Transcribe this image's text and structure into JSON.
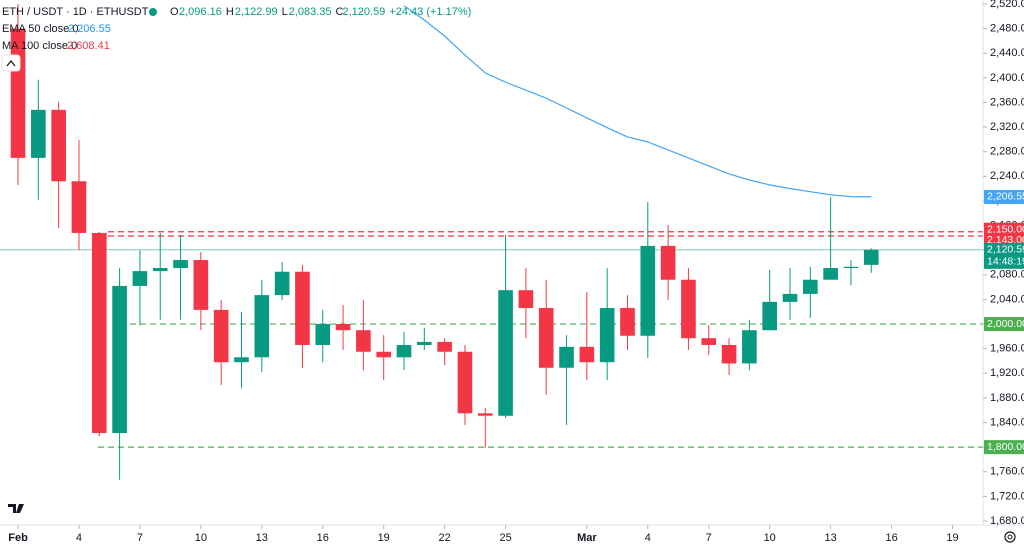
{
  "chart_data": {
    "type": "candlestick",
    "symbol": "ETH / USDT · 1D · ETHUSDT",
    "ohlc_legend": {
      "O": "2,096.16",
      "H": "2,122.99",
      "L": "2,083.35",
      "C": "2,120.59",
      "change": "+24.43 (+1.17%)"
    },
    "ema": {
      "name": "EMA 50 close 0",
      "value_label": "2,206.55",
      "color": "#42a5f5",
      "values": [
        null,
        null,
        null,
        null,
        null,
        null,
        null,
        null,
        null,
        null,
        null,
        null,
        null,
        null,
        null,
        null,
        null,
        null,
        null,
        2517,
        2494,
        2468,
        2437,
        2408,
        2393,
        2380,
        2367,
        2351,
        2335,
        2319,
        2304,
        2296,
        2283,
        2270,
        2257,
        2244,
        2234,
        2226,
        2220,
        2215,
        2210,
        2207,
        2206.55
      ]
    },
    "ma": {
      "name": "MA 100 close 0",
      "value_label": "2,608.41",
      "color": "#f23645"
    },
    "up_color": "#089981",
    "down_color": "#f23645",
    "x": [
      0,
      1,
      2,
      3,
      4,
      5,
      6,
      7,
      8,
      9,
      10,
      11,
      12,
      13,
      14,
      15,
      16,
      17,
      18,
      19,
      20,
      21,
      22,
      23,
      24,
      25,
      26,
      27,
      28,
      29,
      30,
      31,
      32,
      33,
      34,
      35,
      36,
      37,
      38,
      39,
      40,
      41,
      42
    ],
    "open": [
      2480,
      2270,
      2348,
      2232,
      2148,
      1823,
      2062,
      2086,
      2091,
      2104,
      2023,
      1938,
      1946,
      2047,
      2085,
      1966,
      2000,
      1990,
      1955,
      1946,
      1966,
      1971,
      1955,
      1855,
      1851,
      2055,
      2026,
      1929,
      1963,
      1938,
      2026,
      1981,
      2127,
      2072,
      1977,
      1966,
      1936,
      1990,
      2036,
      2049,
      2072,
      2091,
      2096.16
    ],
    "high": [
      2520,
      2397,
      2361,
      2299,
      2150,
      2091,
      2120,
      2148,
      2145,
      2117,
      2039,
      2020,
      2072,
      2101,
      2096,
      2023,
      2031,
      2039,
      1982,
      1987,
      1994,
      1977,
      1966,
      1864,
      2145,
      2091,
      2072,
      1982,
      2052,
      2091,
      2047,
      2198,
      2161,
      2091,
      1998,
      1977,
      2007,
      2088,
      2091,
      2093,
      2206,
      2104,
      2122.99
    ],
    "low": [
      2226,
      2202,
      2156,
      2120,
      1818,
      1747,
      1998,
      2007,
      2007,
      1990,
      1901,
      1896,
      1922,
      2039,
      1929,
      1938,
      1958,
      1925,
      1909,
      1925,
      1958,
      1933,
      1836,
      1799,
      1847,
      1977,
      1885,
      1836,
      1909,
      1909,
      1958,
      1945,
      2039,
      1958,
      1950,
      1917,
      1925,
      1990,
      2007,
      2010,
      2080,
      2063,
      2083.35
    ],
    "close": [
      2270,
      2348,
      2232,
      2148,
      1823,
      2062,
      2086,
      2091,
      2104,
      2023,
      1938,
      1946,
      2047,
      2085,
      1966,
      2000,
      1990,
      1955,
      1946,
      1966,
      1971,
      1955,
      1855,
      1851,
      2055,
      2026,
      1929,
      1963,
      1938,
      2026,
      1981,
      2127,
      2072,
      1977,
      1966,
      1936,
      1990,
      2036,
      2049,
      2072,
      2091,
      2093,
      2120.59
    ],
    "xlim": [
      -0.887,
      47.5
    ],
    "xticks": [
      {
        "value": 0,
        "label": "Feb"
      },
      {
        "value": 3,
        "label": "4"
      },
      {
        "value": 6,
        "label": "7"
      },
      {
        "value": 9,
        "label": "10"
      },
      {
        "value": 12,
        "label": "13"
      },
      {
        "value": 15,
        "label": "16"
      },
      {
        "value": 18,
        "label": "19"
      },
      {
        "value": 21,
        "label": "22"
      },
      {
        "value": 24,
        "label": "25"
      },
      {
        "value": 28,
        "label": "Mar"
      },
      {
        "value": 31,
        "label": "4"
      },
      {
        "value": 34,
        "label": "7"
      },
      {
        "value": 37,
        "label": "10"
      },
      {
        "value": 40,
        "label": "13"
      },
      {
        "value": 43,
        "label": "16"
      },
      {
        "value": 46,
        "label": "19"
      }
    ],
    "ylim": [
      1680,
      2520
    ],
    "yticks": [
      {
        "value": 2520,
        "label": "2,520.00"
      },
      {
        "value": 2480,
        "label": "2,480.00"
      },
      {
        "value": 2440,
        "label": "2,440.00"
      },
      {
        "value": 2400,
        "label": "2,400.00"
      },
      {
        "value": 2360,
        "label": "2,360.00"
      },
      {
        "value": 2320,
        "label": "2,320.00"
      },
      {
        "value": 2280,
        "label": "2,280.00"
      },
      {
        "value": 2240,
        "label": "2,240.00"
      },
      {
        "value": 2200,
        "label": "2,200.00"
      },
      {
        "value": 2160,
        "label": "2,160.00"
      },
      {
        "value": 2120,
        "label": "2,120.00"
      },
      {
        "value": 2080,
        "label": "2,080.00"
      },
      {
        "value": 2040,
        "label": "2,040.00"
      },
      {
        "value": 2000,
        "label": "2,000.00"
      },
      {
        "value": 1960,
        "label": "1,960.00"
      },
      {
        "value": 1920,
        "label": "1,920.00"
      },
      {
        "value": 1880,
        "label": "1,880.00"
      },
      {
        "value": 1840,
        "label": "1,840.00"
      },
      {
        "value": 1800,
        "label": "1,800.00"
      },
      {
        "value": 1760,
        "label": "1,760.00"
      },
      {
        "value": 1720,
        "label": "1,720.00"
      },
      {
        "value": 1680,
        "label": "1,680.00"
      }
    ],
    "levels": [
      {
        "value": 2150,
        "label": "2,150.00",
        "color": "#f23645",
        "style": "dashed"
      },
      {
        "value": 2143,
        "label": "2,143.00",
        "color": "#f23645",
        "style": "dashed"
      },
      {
        "value": 2000,
        "label": "2,000.00",
        "color": "#4caf50",
        "style": "dashed"
      },
      {
        "value": 1800,
        "label": "1,800.00",
        "color": "#4caf50",
        "style": "dashed"
      }
    ],
    "last_price": {
      "value": 2120.59,
      "label": "2,120.59",
      "countdown": "14:48:19",
      "color": "#089981"
    },
    "ema_price": {
      "value": 2206.55,
      "label": "2,206.55"
    },
    "grid": false
  }
}
